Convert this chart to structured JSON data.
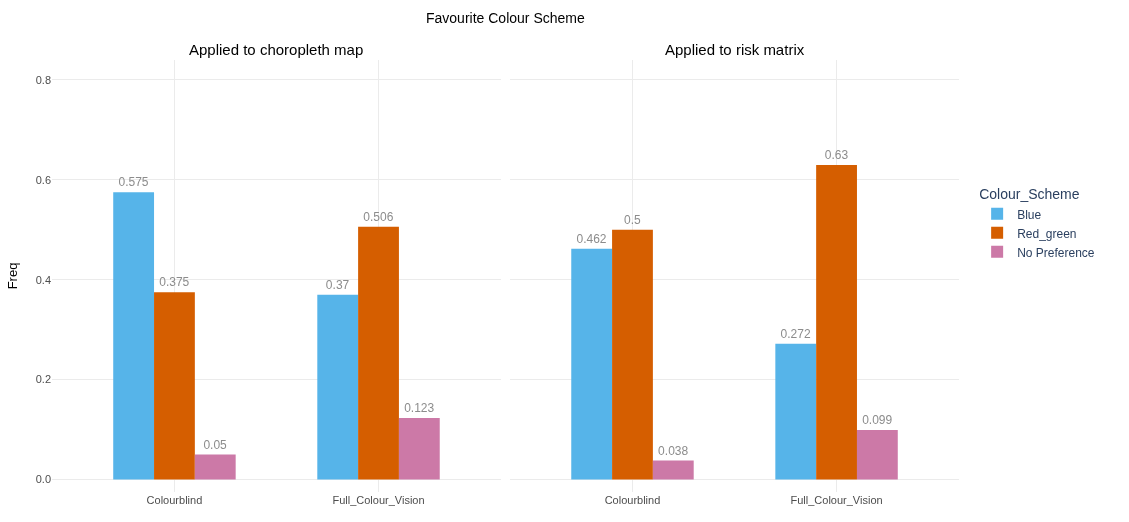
{
  "chart_data": [
    {
      "type": "bar",
      "title": "Applied to choropleth map",
      "annotations": [
        "Favourite Colour Scheme"
      ],
      "ylabel": "Freq",
      "categories": [
        "Colourblind",
        "Full_Colour_Vision"
      ],
      "series": [
        {
          "color": "#56b4e9",
          "values": [
            0.575,
            0.37
          ]
        },
        {
          "color": "#d55e00",
          "values": [
            0.375,
            0.506
          ]
        },
        {
          "color": "#cc79a7",
          "values": [
            0.05,
            0.123
          ]
        }
      ],
      "ylim": [
        -0.025,
        0.84
      ],
      "yticks": [
        {
          "value": 0,
          "label": "0.0"
        },
        0.2,
        0.4,
        0.6,
        0.8
      ],
      "grid": true,
      "data_labels": true
    },
    {
      "type": "bar",
      "title": "Applied to risk matrix",
      "categories": [
        "Colourblind",
        "Full_Colour_Vision"
      ],
      "legend_title": "Colour_Scheme",
      "legend": "right",
      "series": [
        {
          "name": "Blue",
          "color": "#56b4e9",
          "values": [
            0.462,
            0.272
          ]
        },
        {
          "name": "Red_green",
          "color": "#d55e00",
          "values": [
            0.5,
            0.63
          ]
        },
        {
          "name": "No Preference",
          "color": "#cc79a7",
          "values": [
            0.038,
            0.099
          ]
        }
      ],
      "ylim": [
        -0.025,
        0.84
      ],
      "yticks": [
        {
          "value": 0,
          "label": null
        },
        {
          "value": 0.2,
          "label": null
        },
        {
          "value": 0.4,
          "label": null
        },
        {
          "value": 0.6,
          "label": null
        },
        {
          "value": 0.8,
          "label": null
        }
      ],
      "grid": true,
      "data_labels": true,
      "tick_labels": "x"
    }
  ]
}
